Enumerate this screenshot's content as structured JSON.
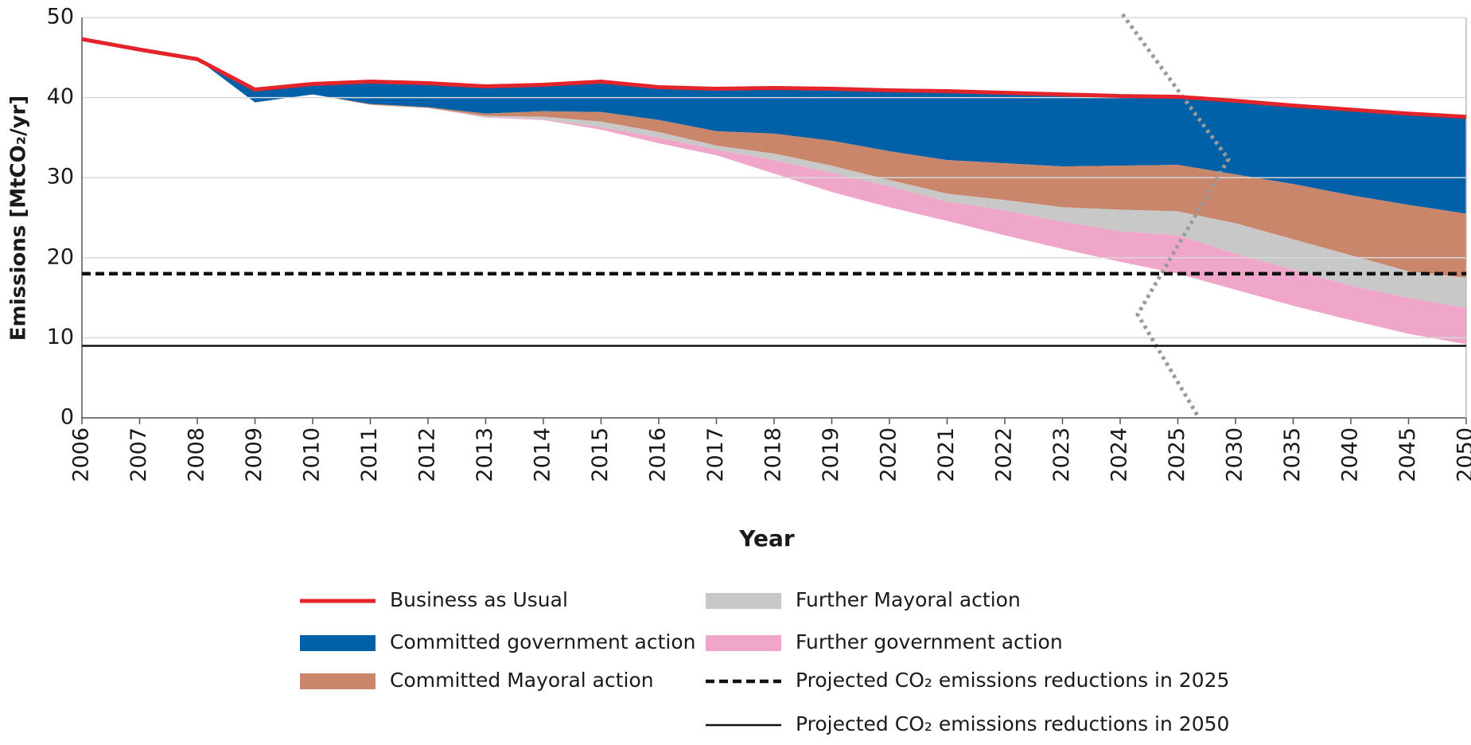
{
  "chart_data": {
    "type": "area",
    "xlabel": "Year",
    "ylabel": "Emissions [MtCO₂/yr]",
    "categories": [
      "2006",
      "2007",
      "2008",
      "2009",
      "2010",
      "2011",
      "2012",
      "2013",
      "2014",
      "2015",
      "2016",
      "2017",
      "2018",
      "2019",
      "2020",
      "2021",
      "2022",
      "2023",
      "2024",
      "2025",
      "2030",
      "2035",
      "2040",
      "2045",
      "2050"
    ],
    "ylim": [
      0,
      50
    ],
    "yticks": [
      0,
      10,
      20,
      30,
      40,
      50
    ],
    "grid": true,
    "series": [
      {
        "name": "Business as Usual",
        "color": "#e3242b",
        "style": "line",
        "values": [
          47.3,
          46,
          44.8,
          41,
          41.7,
          42,
          41.8,
          41.4,
          41.6,
          42,
          41.3,
          41.1,
          41.2,
          41.1,
          40.9,
          40.8,
          40.6,
          40.4,
          40.2,
          40.1,
          39.6,
          39.0,
          38.5,
          38.0,
          37.6
        ]
      },
      {
        "name": "Committed government action",
        "color": "#0060a8",
        "values": [
          0,
          0,
          0,
          1.6,
          1.3,
          2.8,
          3.0,
          3.4,
          3.3,
          3.8,
          4.1,
          5.3,
          5.7,
          6.5,
          7.6,
          8.6,
          8.8,
          9.0,
          8.7,
          8.5,
          9.2,
          9.8,
          10.7,
          11.4,
          12.1
        ]
      },
      {
        "name": "Committed Mayoral action",
        "color": "#c9866a",
        "values": [
          0,
          0,
          0,
          0,
          0,
          0.1,
          0.1,
          0.3,
          0.7,
          1.2,
          1.5,
          1.8,
          2.5,
          3.1,
          3.6,
          4.2,
          4.6,
          5.1,
          5.5,
          5.8,
          6.1,
          6.9,
          7.5,
          8.3,
          8.0
        ]
      },
      {
        "name": "Further Mayoral action",
        "color": "#c8c8c8",
        "values": [
          0,
          0,
          0,
          0,
          0,
          0,
          0,
          0.1,
          0.3,
          0.7,
          0.7,
          0.5,
          0.8,
          0.9,
          0.8,
          1.0,
          1.3,
          1.8,
          2.7,
          3.0,
          3.8,
          3.8,
          3.8,
          3.3,
          3.8
        ]
      },
      {
        "name": "Further government action",
        "color": "#f0a6c8",
        "values": [
          0,
          0,
          0,
          0,
          0,
          0,
          0,
          0.1,
          0.1,
          0.3,
          0.7,
          0.7,
          1.7,
          2.4,
          2.6,
          2.4,
          3.1,
          3.4,
          3.8,
          4.8,
          4.5,
          4.5,
          4.3,
          4.5,
          4.5
        ]
      }
    ],
    "reference_lines": [
      {
        "name": "Projected CO₂ emissions reductions in 2025",
        "value": 18,
        "color": "#111111",
        "dashed": true
      },
      {
        "name": "Projected CO₂ emissions reductions in 2050",
        "value": 9,
        "color": "#111111",
        "dashed": false
      }
    ]
  }
}
